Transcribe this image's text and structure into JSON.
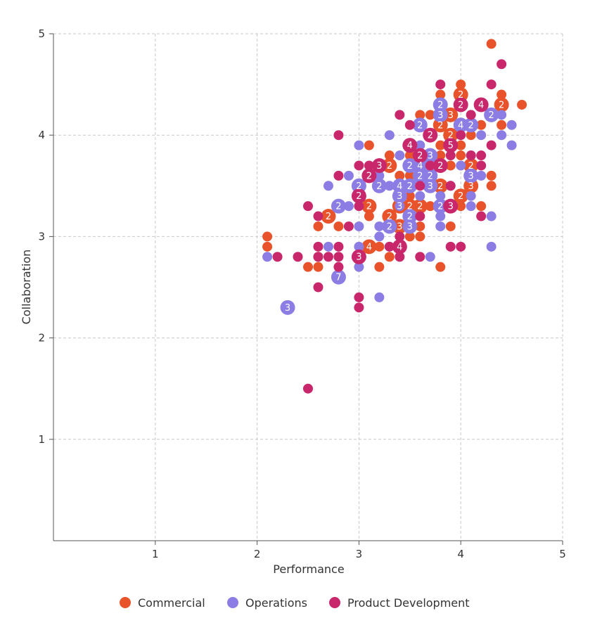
{
  "chart_data": {
    "type": "scatter",
    "title": "",
    "xlabel": "Performance",
    "ylabel": "Collaboration",
    "xlim": [
      0,
      5
    ],
    "ylim": [
      0,
      5
    ],
    "xticks": [
      "1",
      "2",
      "3",
      "4",
      "5"
    ],
    "yticks": [
      "1",
      "2",
      "3",
      "4",
      "5"
    ],
    "grid": true,
    "legend_position": "bottom",
    "legend": [
      "Commercial",
      "Operations",
      "Product Development"
    ],
    "colors": {
      "Commercial": "#e8532b",
      "Operations": "#8b7de3",
      "Product Development": "#c8276b"
    },
    "series": [
      {
        "name": "Commercial",
        "points": [
          [
            4.3,
            4.9,
            1
          ],
          [
            4.0,
            4.5,
            1
          ],
          [
            3.8,
            4.4,
            1
          ],
          [
            4.4,
            4.4,
            1
          ],
          [
            4.0,
            4.4,
            2
          ],
          [
            4.4,
            4.3,
            2
          ],
          [
            4.6,
            4.3,
            1
          ],
          [
            3.6,
            4.2,
            1
          ],
          [
            3.7,
            4.2,
            1
          ],
          [
            3.9,
            4.2,
            3
          ],
          [
            3.8,
            4.1,
            2
          ],
          [
            4.2,
            4.1,
            1
          ],
          [
            4.4,
            4.1,
            1
          ],
          [
            3.9,
            4.0,
            2
          ],
          [
            4.1,
            4.0,
            1
          ],
          [
            3.1,
            3.9,
            1
          ],
          [
            3.8,
            3.9,
            1
          ],
          [
            4.0,
            3.9,
            1
          ],
          [
            3.3,
            3.8,
            1
          ],
          [
            3.5,
            3.8,
            1
          ],
          [
            3.8,
            3.8,
            1
          ],
          [
            4.0,
            3.8,
            1
          ],
          [
            4.1,
            3.7,
            2
          ],
          [
            3.3,
            3.7,
            2
          ],
          [
            3.5,
            3.7,
            1
          ],
          [
            3.9,
            3.7,
            1
          ],
          [
            3.4,
            3.6,
            1
          ],
          [
            3.5,
            3.6,
            1
          ],
          [
            4.3,
            3.6,
            1
          ],
          [
            3.8,
            3.5,
            2
          ],
          [
            4.1,
            3.5,
            3
          ],
          [
            4.3,
            3.5,
            1
          ],
          [
            4.0,
            3.4,
            2
          ],
          [
            3.5,
            3.4,
            1
          ],
          [
            3.1,
            3.3,
            2
          ],
          [
            3.4,
            3.3,
            3
          ],
          [
            3.5,
            3.3,
            2
          ],
          [
            3.6,
            3.3,
            2
          ],
          [
            3.7,
            3.3,
            1
          ],
          [
            4.0,
            3.3,
            1
          ],
          [
            4.2,
            3.3,
            1
          ],
          [
            2.7,
            3.2,
            2
          ],
          [
            3.1,
            3.2,
            1
          ],
          [
            3.3,
            3.2,
            2
          ],
          [
            2.6,
            3.1,
            1
          ],
          [
            2.8,
            3.1,
            1
          ],
          [
            3.4,
            3.1,
            3
          ],
          [
            3.6,
            3.1,
            1
          ],
          [
            3.9,
            3.1,
            1
          ],
          [
            2.1,
            3.0,
            1
          ],
          [
            3.5,
            3.0,
            1
          ],
          [
            3.6,
            3.0,
            1
          ],
          [
            2.1,
            2.9,
            1
          ],
          [
            3.1,
            2.9,
            4
          ],
          [
            3.2,
            2.9,
            1
          ],
          [
            2.6,
            2.8,
            1
          ],
          [
            3.3,
            2.8,
            1
          ],
          [
            2.5,
            2.7,
            1
          ],
          [
            2.6,
            2.7,
            1
          ],
          [
            3.2,
            2.7,
            1
          ],
          [
            3.8,
            2.7,
            1
          ]
        ]
      },
      {
        "name": "Operations",
        "points": [
          [
            3.8,
            4.3,
            2
          ],
          [
            4.3,
            4.2,
            2
          ],
          [
            4.4,
            4.2,
            1
          ],
          [
            3.8,
            4.2,
            3
          ],
          [
            3.6,
            4.1,
            2
          ],
          [
            4.0,
            4.1,
            4
          ],
          [
            4.1,
            4.1,
            2
          ],
          [
            4.5,
            4.1,
            1
          ],
          [
            3.3,
            4.0,
            1
          ],
          [
            4.2,
            4.0,
            1
          ],
          [
            4.4,
            4.0,
            1
          ],
          [
            3.0,
            3.9,
            1
          ],
          [
            3.6,
            3.9,
            1
          ],
          [
            4.5,
            3.9,
            1
          ],
          [
            3.4,
            3.8,
            1
          ],
          [
            3.7,
            3.8,
            3
          ],
          [
            4.1,
            3.8,
            1
          ],
          [
            3.5,
            3.7,
            2
          ],
          [
            3.6,
            3.7,
            4
          ],
          [
            4.0,
            3.7,
            1
          ],
          [
            2.9,
            3.6,
            1
          ],
          [
            3.2,
            3.6,
            1
          ],
          [
            3.6,
            3.6,
            2
          ],
          [
            3.7,
            3.6,
            2
          ],
          [
            4.1,
            3.6,
            3
          ],
          [
            4.2,
            3.6,
            1
          ],
          [
            2.7,
            3.5,
            1
          ],
          [
            3.0,
            3.5,
            2
          ],
          [
            3.2,
            3.5,
            2
          ],
          [
            3.3,
            3.5,
            1
          ],
          [
            3.4,
            3.5,
            4
          ],
          [
            3.5,
            3.5,
            2
          ],
          [
            3.7,
            3.5,
            3
          ],
          [
            3.9,
            3.5,
            1
          ],
          [
            3.4,
            3.4,
            3
          ],
          [
            3.6,
            3.4,
            1
          ],
          [
            3.8,
            3.4,
            1
          ],
          [
            4.1,
            3.4,
            1
          ],
          [
            2.8,
            3.3,
            2
          ],
          [
            2.9,
            3.3,
            1
          ],
          [
            3.4,
            3.3,
            1
          ],
          [
            3.8,
            3.3,
            2
          ],
          [
            4.1,
            3.3,
            1
          ],
          [
            3.5,
            3.2,
            2
          ],
          [
            3.8,
            3.2,
            1
          ],
          [
            4.3,
            3.2,
            1
          ],
          [
            3.0,
            3.1,
            1
          ],
          [
            3.2,
            3.1,
            1
          ],
          [
            3.3,
            3.1,
            2
          ],
          [
            3.5,
            3.1,
            3
          ],
          [
            3.8,
            3.1,
            1
          ],
          [
            3.2,
            3.0,
            1
          ],
          [
            2.7,
            2.9,
            1
          ],
          [
            3.0,
            2.9,
            1
          ],
          [
            3.3,
            2.9,
            1
          ],
          [
            4.3,
            2.9,
            1
          ],
          [
            2.1,
            2.8,
            1
          ],
          [
            3.7,
            2.8,
            1
          ],
          [
            3.0,
            2.7,
            1
          ],
          [
            2.8,
            2.6,
            7
          ],
          [
            3.2,
            2.4,
            1
          ],
          [
            2.3,
            2.3,
            3
          ]
        ]
      },
      {
        "name": "Product Development",
        "points": [
          [
            4.4,
            4.7,
            1
          ],
          [
            3.8,
            4.5,
            1
          ],
          [
            4.3,
            4.5,
            1
          ],
          [
            4.0,
            4.3,
            2
          ],
          [
            4.2,
            4.3,
            4
          ],
          [
            4.1,
            4.2,
            1
          ],
          [
            3.4,
            4.2,
            1
          ],
          [
            3.5,
            4.1,
            1
          ],
          [
            2.8,
            4.0,
            1
          ],
          [
            3.7,
            4.0,
            2
          ],
          [
            4.0,
            4.0,
            1
          ],
          [
            3.5,
            3.9,
            4
          ],
          [
            3.9,
            3.9,
            5
          ],
          [
            4.3,
            3.9,
            1
          ],
          [
            3.6,
            3.8,
            2
          ],
          [
            3.9,
            3.8,
            1
          ],
          [
            4.1,
            3.8,
            1
          ],
          [
            4.2,
            3.8,
            1
          ],
          [
            3.0,
            3.7,
            1
          ],
          [
            3.1,
            3.7,
            1
          ],
          [
            3.2,
            3.7,
            3
          ],
          [
            3.7,
            3.7,
            1
          ],
          [
            3.8,
            3.7,
            2
          ],
          [
            4.2,
            3.7,
            1
          ],
          [
            2.8,
            3.6,
            1
          ],
          [
            3.1,
            3.6,
            2
          ],
          [
            3.6,
            3.5,
            1
          ],
          [
            3.9,
            3.5,
            1
          ],
          [
            3.0,
            3.4,
            2
          ],
          [
            3.0,
            3.3,
            1
          ],
          [
            3.9,
            3.3,
            3
          ],
          [
            2.5,
            3.3,
            1
          ],
          [
            2.6,
            3.2,
            1
          ],
          [
            4.2,
            3.2,
            1
          ],
          [
            3.6,
            3.2,
            1
          ],
          [
            2.9,
            3.1,
            1
          ],
          [
            3.4,
            3.0,
            1
          ],
          [
            2.6,
            2.9,
            1
          ],
          [
            2.8,
            2.9,
            1
          ],
          [
            3.3,
            2.9,
            1
          ],
          [
            3.4,
            2.9,
            4
          ],
          [
            3.9,
            2.9,
            1
          ],
          [
            4.0,
            2.9,
            1
          ],
          [
            2.2,
            2.8,
            1
          ],
          [
            2.4,
            2.8,
            1
          ],
          [
            2.6,
            2.8,
            1
          ],
          [
            2.7,
            2.8,
            1
          ],
          [
            2.8,
            2.8,
            1
          ],
          [
            3.0,
            2.8,
            3
          ],
          [
            3.4,
            2.8,
            1
          ],
          [
            3.6,
            2.8,
            1
          ],
          [
            2.8,
            2.7,
            1
          ],
          [
            2.6,
            2.5,
            1
          ],
          [
            3.0,
            2.4,
            1
          ],
          [
            3.0,
            2.3,
            1
          ],
          [
            2.5,
            1.5,
            1
          ]
        ]
      }
    ]
  }
}
